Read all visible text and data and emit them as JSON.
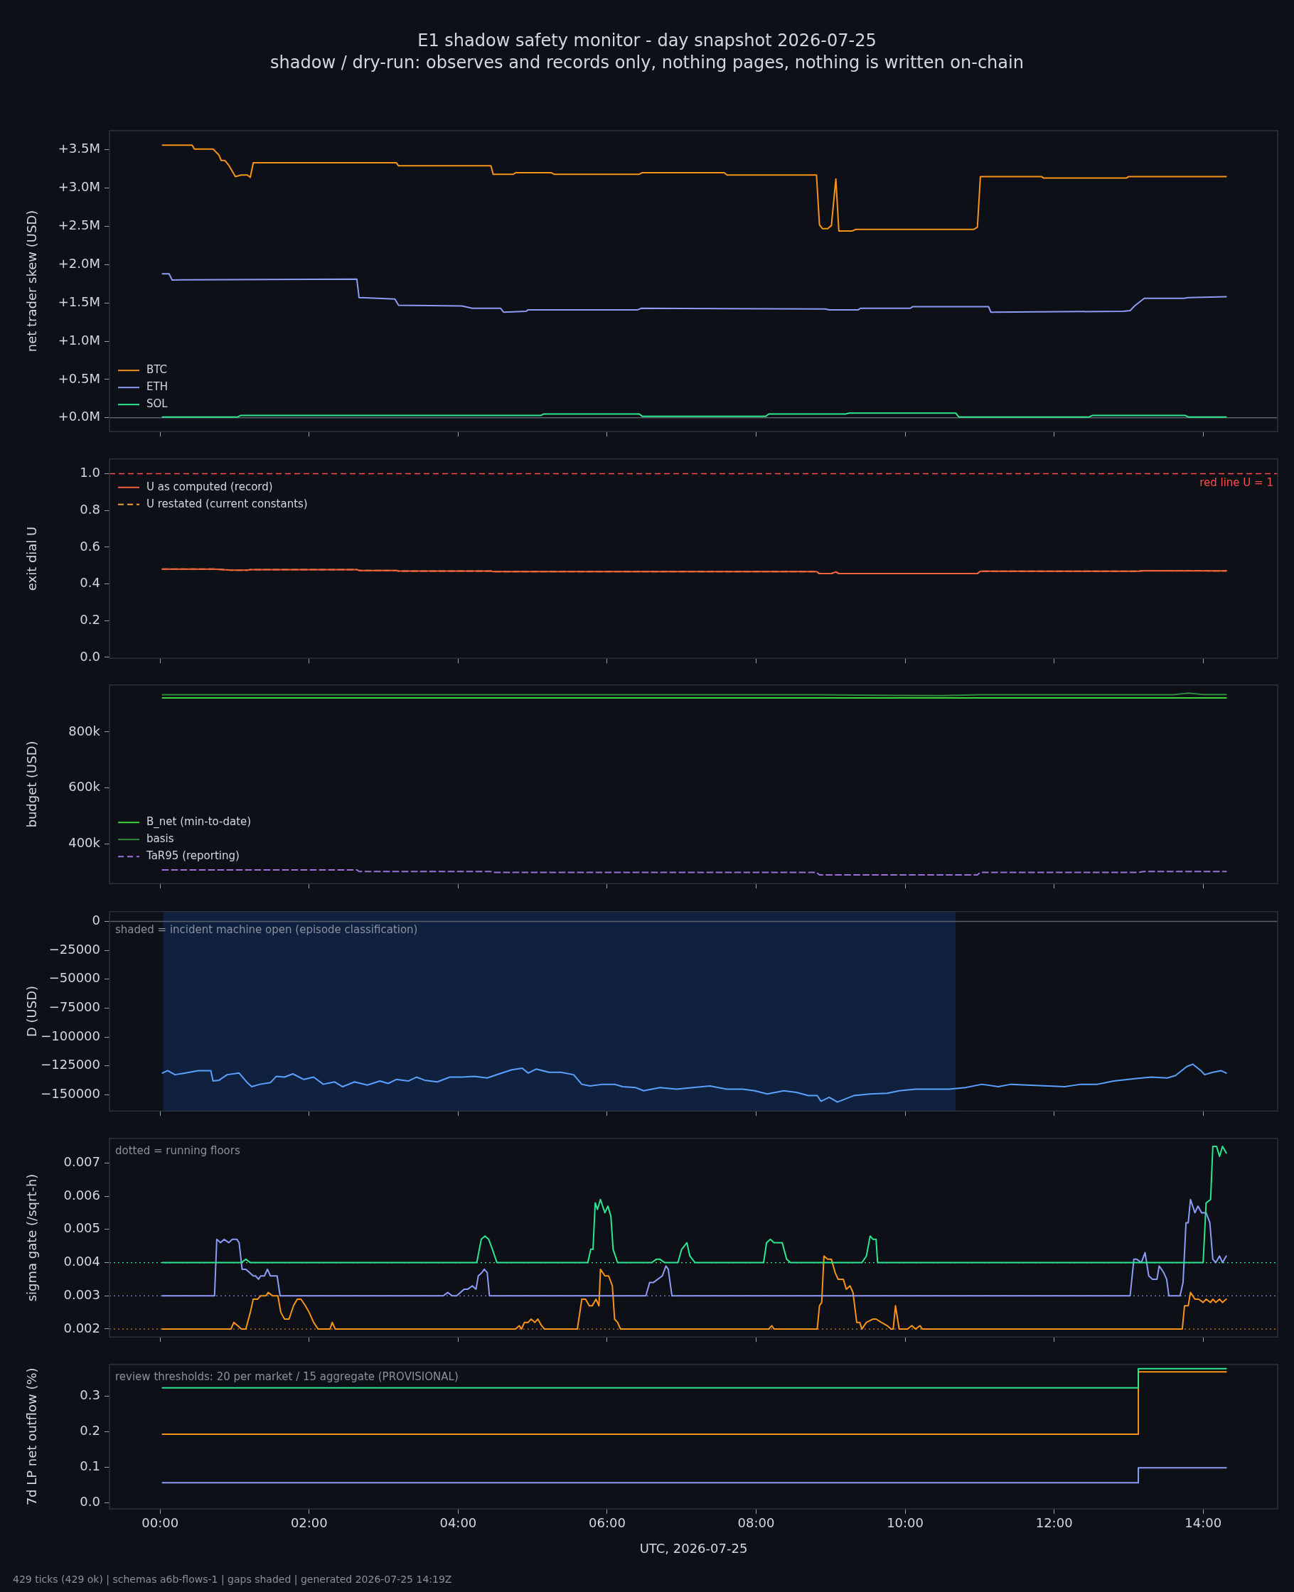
{
  "chart_data": [
    {
      "type": "line",
      "title": "E1 shadow safety monitor - day snapshot 2026-07-25",
      "subtitle": "shadow / dry-run: observes and records only, nothing pages, nothing is written on-chain",
      "ylabel": "net trader skew (USD)",
      "legend": "bottom left",
      "tick_labels": "y",
      "xlim": [
        -0.68,
        15.0
      ],
      "xticks": [
        0,
        2,
        4,
        6,
        8,
        10,
        12,
        14
      ],
      "ylim": [
        -0.18,
        3.75
      ],
      "yticks": [
        {
          "value": 0,
          "label": "+0.0M"
        },
        {
          "value": 0.5,
          "label": "+0.5M"
        },
        {
          "value": 1,
          "label": "+1.0M"
        },
        {
          "value": 1.5,
          "label": "+1.5M"
        },
        {
          "value": 2,
          "label": "+2.0M"
        },
        {
          "value": 2.5,
          "label": "+2.5M"
        },
        {
          "value": 3,
          "label": "+3.0M"
        },
        {
          "value": 3.5,
          "label": "+3.5M"
        }
      ],
      "ref_lines": [
        {
          "axis": "y",
          "value": 0,
          "color": "#5a606b"
        }
      ],
      "series": [
        {
          "name": "BTC",
          "color": "#f7931a",
          "x": [
            0.03,
            0.43,
            0.46,
            0.71,
            0.79,
            0.82,
            0.87,
            0.92,
            1.01,
            1.09,
            1.17,
            1.21,
            1.25,
            3.17,
            3.2,
            4.44,
            4.47,
            4.74,
            4.77,
            5.25,
            5.29,
            6.43,
            6.47,
            7.57,
            7.61,
            8.81,
            8.85,
            8.89,
            8.96,
            9.01,
            9.07,
            9.11,
            9.29,
            9.34,
            10.92,
            10.97,
            11.01,
            11.83,
            11.86,
            12.97,
            13.0,
            14.31
          ],
          "values": [
            3.56,
            3.56,
            3.51,
            3.51,
            3.43,
            3.36,
            3.36,
            3.3,
            3.15,
            3.17,
            3.17,
            3.14,
            3.33,
            3.33,
            3.29,
            3.29,
            3.18,
            3.18,
            3.2,
            3.2,
            3.18,
            3.18,
            3.2,
            3.2,
            3.17,
            3.17,
            2.52,
            2.47,
            2.47,
            2.51,
            3.12,
            2.44,
            2.44,
            2.46,
            2.46,
            2.49,
            3.15,
            3.15,
            3.13,
            3.13,
            3.15,
            3.15
          ]
        },
        {
          "name": "ETH",
          "color": "#8c9cf5",
          "x": [
            0.03,
            0.12,
            0.16,
            2.64,
            2.67,
            3.15,
            3.2,
            4.05,
            4.19,
            4.57,
            4.61,
            4.91,
            4.94,
            6.41,
            6.46,
            8.93,
            8.98,
            9.37,
            9.4,
            10.07,
            10.1,
            11.12,
            11.15,
            12.93,
            13.02,
            13.08,
            13.13,
            13.21,
            13.74,
            13.8,
            14.31
          ],
          "values": [
            1.88,
            1.88,
            1.8,
            1.81,
            1.57,
            1.55,
            1.47,
            1.46,
            1.43,
            1.43,
            1.38,
            1.39,
            1.41,
            1.41,
            1.43,
            1.42,
            1.41,
            1.41,
            1.43,
            1.43,
            1.45,
            1.45,
            1.38,
            1.39,
            1.4,
            1.46,
            1.5,
            1.56,
            1.56,
            1.57,
            1.58
          ]
        },
        {
          "name": "SOL",
          "color": "#2ee68f",
          "x": [
            0.03,
            1.04,
            1.08,
            5.11,
            5.15,
            6.43,
            6.47,
            8.13,
            8.17,
            9.2,
            9.25,
            10.68,
            10.72,
            12.47,
            12.51,
            13.76,
            13.8,
            14.31
          ],
          "values": [
            0.01,
            0.01,
            0.03,
            0.03,
            0.05,
            0.05,
            0.02,
            0.02,
            0.05,
            0.05,
            0.06,
            0.06,
            0.01,
            0.01,
            0.03,
            0.03,
            0.01,
            0.01
          ]
        }
      ]
    },
    {
      "type": "line",
      "ylabel": "exit dial U",
      "legend": "top left",
      "tick_labels": "y",
      "xlim": [
        -0.68,
        15.0
      ],
      "xticks": [
        0,
        2,
        4,
        6,
        8,
        10,
        12,
        14
      ],
      "ylim": [
        -0.005,
        1.08
      ],
      "yticks": [
        {
          "value": 0,
          "label": "0.0"
        },
        {
          "value": 0.2,
          "label": "0.2"
        },
        {
          "value": 0.4,
          "label": "0.4"
        },
        {
          "value": 0.6,
          "label": "0.6"
        },
        {
          "value": 0.8,
          "label": "0.8"
        },
        {
          "value": 1,
          "label": "1.0"
        }
      ],
      "ref_lines": [
        {
          "axis": "y",
          "value": 1,
          "label": "red line U = 1",
          "color": "#ff4d4d",
          "line_style": "dashed"
        }
      ],
      "series": [
        {
          "name": "U as computed (record)",
          "color": "#f0603c",
          "x": [
            0.03,
            0.73,
            0.95,
            1.17,
            1.21,
            2.64,
            2.67,
            3.17,
            3.2,
            4.44,
            4.47,
            8.81,
            8.85,
            9.01,
            9.07,
            9.11,
            10.97,
            11.01,
            13.13,
            13.2,
            14.31
          ],
          "values": [
            0.48,
            0.48,
            0.475,
            0.475,
            0.478,
            0.478,
            0.473,
            0.473,
            0.47,
            0.47,
            0.467,
            0.467,
            0.456,
            0.456,
            0.465,
            0.456,
            0.456,
            0.469,
            0.469,
            0.472,
            0.471
          ]
        },
        {
          "name": "U restated (current constants)",
          "color": "#f0a030",
          "line_style": "dashed",
          "x": [
            0.03,
            0.73,
            0.95,
            1.17,
            1.21,
            2.64,
            2.67,
            3.17,
            3.2,
            4.44,
            4.47,
            8.81,
            8.85,
            9.01,
            9.07,
            9.11,
            10.97,
            11.01,
            13.13,
            13.2,
            14.31
          ],
          "values": [
            0.48,
            0.48,
            0.475,
            0.475,
            0.478,
            0.478,
            0.473,
            0.473,
            0.47,
            0.47,
            0.467,
            0.467,
            0.456,
            0.456,
            0.465,
            0.456,
            0.456,
            0.469,
            0.469,
            0.472,
            0.471
          ]
        }
      ]
    },
    {
      "type": "line",
      "ylabel": "budget (USD)",
      "legend": "bottom left",
      "tick_labels": "y",
      "xlim": [
        -0.68,
        15.0
      ],
      "xticks": [
        0,
        2,
        4,
        6,
        8,
        10,
        12,
        14
      ],
      "ylim": [
        258000,
        968000
      ],
      "yticks": [
        {
          "value": 400000,
          "label": "400k"
        },
        {
          "value": 600000,
          "label": "600k"
        },
        {
          "value": 800000,
          "label": "800k"
        }
      ],
      "series": [
        {
          "name": "B_net (min-to-date)",
          "color": "#3cd43c",
          "x": [
            0.03,
            14.31
          ],
          "values": [
            922000,
            922000
          ]
        },
        {
          "name": "basis",
          "color": "#2e8b3e",
          "x": [
            0.03,
            8.8,
            10.5,
            11.0,
            13.6,
            13.8,
            14.0,
            14.31
          ],
          "values": [
            933000,
            933000,
            930000,
            933000,
            933000,
            939000,
            934000,
            934000
          ]
        },
        {
          "name": "TaR95 (reporting)",
          "color": "#9b6fd6",
          "line_style": "dashed",
          "x": [
            0.03,
            2.64,
            2.67,
            4.44,
            4.47,
            8.81,
            8.85,
            10.97,
            11.01,
            13.13,
            13.2,
            14.31
          ],
          "values": [
            307000,
            307000,
            301000,
            301000,
            298000,
            298000,
            289000,
            289000,
            298000,
            298000,
            301000,
            301000
          ]
        }
      ]
    },
    {
      "type": "line",
      "ylabel": "D (USD)",
      "tick_labels": "y",
      "xlim": [
        -0.68,
        15.0
      ],
      "xticks": [
        0,
        2,
        4,
        6,
        8,
        10,
        12,
        14
      ],
      "ylim": [
        -164000,
        8400
      ],
      "yticks": [
        {
          "value": -150000,
          "label": "−150000"
        },
        {
          "value": -125000,
          "label": "−125000"
        },
        {
          "value": -100000,
          "label": "−100000"
        },
        {
          "value": -75000,
          "label": "−75000"
        },
        {
          "value": -50000,
          "label": "−50000"
        },
        {
          "value": -25000,
          "label": "−25000"
        },
        {
          "value": 0,
          "label": "0"
        }
      ],
      "bands": [
        {
          "axis": "x",
          "from": 0.04,
          "to": 10.68,
          "label": "shaded = incident machine open (episode classification)",
          "color": "#10213f"
        }
      ],
      "ref_lines": [
        {
          "axis": "y",
          "value": 0,
          "color": "#5a606b"
        }
      ],
      "series": [
        {
          "color": "#5aa0ff",
          "x": [
            0.03,
            0.1,
            0.2,
            0.34,
            0.51,
            0.68,
            0.71,
            0.79,
            0.9,
            1.06,
            1.17,
            1.23,
            1.34,
            1.48,
            1.56,
            1.67,
            1.78,
            1.93,
            2.06,
            2.19,
            2.34,
            2.45,
            2.61,
            2.78,
            2.95,
            3.06,
            3.17,
            3.33,
            3.44,
            3.55,
            3.72,
            3.89,
            4.05,
            4.22,
            4.39,
            4.55,
            4.72,
            4.86,
            4.94,
            5.05,
            5.22,
            5.38,
            5.55,
            5.66,
            5.77,
            5.94,
            6.1,
            6.21,
            6.38,
            6.49,
            6.71,
            6.93,
            7.15,
            7.38,
            7.6,
            7.82,
            7.98,
            8.15,
            8.37,
            8.54,
            8.7,
            8.82,
            8.87,
            8.98,
            9.09,
            9.2,
            9.31,
            9.53,
            9.76,
            9.92,
            10.14,
            10.37,
            10.59,
            10.81,
            11.03,
            11.25,
            11.42,
            11.64,
            11.92,
            12.14,
            12.36,
            12.58,
            12.8,
            13.08,
            13.3,
            13.52,
            13.63,
            13.78,
            13.86,
            13.97,
            14.02,
            14.13,
            14.24,
            14.31
          ],
          "values": [
            -131200,
            -129100,
            -132600,
            -131200,
            -129100,
            -129100,
            -138100,
            -137400,
            -132600,
            -131200,
            -139500,
            -143000,
            -140900,
            -139500,
            -134000,
            -134700,
            -131900,
            -136700,
            -134700,
            -140900,
            -138800,
            -143000,
            -138800,
            -141600,
            -138100,
            -140200,
            -136700,
            -138100,
            -134700,
            -137400,
            -138800,
            -134700,
            -134700,
            -134000,
            -135400,
            -131900,
            -128400,
            -127000,
            -131200,
            -127700,
            -130500,
            -130500,
            -132600,
            -140900,
            -142300,
            -140900,
            -140900,
            -143000,
            -143700,
            -146500,
            -143700,
            -145100,
            -143700,
            -142300,
            -145100,
            -145100,
            -146500,
            -149300,
            -146500,
            -147900,
            -150700,
            -150700,
            -155600,
            -152100,
            -156300,
            -153500,
            -150700,
            -149300,
            -148600,
            -146500,
            -145100,
            -145100,
            -145100,
            -143700,
            -140900,
            -143000,
            -140900,
            -141600,
            -142300,
            -143000,
            -140900,
            -140900,
            -138100,
            -136100,
            -134700,
            -135400,
            -133300,
            -125600,
            -123500,
            -129100,
            -132600,
            -130500,
            -129100,
            -131200
          ]
        }
      ]
    },
    {
      "type": "line",
      "ylabel": "sigma gate (/sqrt-h)",
      "tick_labels": "y",
      "annotations": [
        "dotted = running floors"
      ],
      "xlim": [
        -0.68,
        15.0
      ],
      "xticks": [
        0,
        2,
        4,
        6,
        8,
        10,
        12,
        14
      ],
      "ylim": [
        0.00176,
        0.00774
      ],
      "yticks": [
        0.002,
        0.003,
        0.004,
        0.005,
        0.006,
        0.007
      ],
      "ref_lines": [
        {
          "axis": "y",
          "value": 0.004,
          "color": "#2ee68f",
          "line_style": "dotted"
        },
        {
          "axis": "y",
          "value": 0.003,
          "color": "#8c9cf5",
          "line_style": "dotted"
        },
        {
          "axis": "y",
          "value": 0.002,
          "color": "#f7931a",
          "line_style": "dotted"
        }
      ],
      "series": [
        {
          "color": "#2ee68f",
          "x": [
            0.03,
            1.09,
            1.15,
            1.21,
            4.25,
            4.31,
            4.36,
            4.41,
            4.46,
            4.52,
            5.74,
            5.78,
            5.81,
            5.84,
            5.87,
            5.91,
            5.97,
            6.01,
            6.05,
            6.08,
            6.14,
            6.6,
            6.66,
            6.71,
            6.77,
            6.95,
            7.0,
            7.07,
            7.11,
            7.18,
            8.1,
            8.14,
            8.19,
            8.24,
            8.35,
            8.41,
            8.46,
            9.42,
            9.48,
            9.53,
            9.57,
            9.61,
            9.63,
            14.0,
            14.04,
            14.1,
            14.13,
            14.18,
            14.22,
            14.26,
            14.31
          ],
          "values": [
            0.004,
            0.004,
            0.0041,
            0.004,
            0.004,
            0.0047,
            0.0048,
            0.0047,
            0.0044,
            0.004,
            0.004,
            0.0044,
            0.0044,
            0.0058,
            0.0056,
            0.0059,
            0.0055,
            0.0057,
            0.0054,
            0.0044,
            0.004,
            0.004,
            0.0041,
            0.0041,
            0.004,
            0.004,
            0.0044,
            0.0046,
            0.0042,
            0.004,
            0.004,
            0.0046,
            0.0047,
            0.0046,
            0.0046,
            0.0041,
            0.004,
            0.004,
            0.0042,
            0.0048,
            0.0047,
            0.0047,
            0.004,
            0.004,
            0.0058,
            0.0059,
            0.0075,
            0.0075,
            0.0072,
            0.0075,
            0.0073
          ]
        },
        {
          "color": "#8c9cf5",
          "x": [
            0.03,
            0.73,
            0.76,
            0.81,
            0.86,
            0.92,
            0.97,
            1.03,
            1.06,
            1.1,
            1.15,
            1.2,
            1.25,
            1.28,
            1.32,
            1.35,
            1.4,
            1.44,
            1.48,
            1.57,
            1.61,
            3.8,
            3.86,
            3.92,
            3.98,
            4.08,
            4.13,
            4.19,
            4.24,
            4.27,
            4.32,
            4.35,
            4.39,
            4.42,
            6.52,
            6.57,
            6.62,
            6.68,
            6.74,
            6.79,
            6.82,
            6.87,
            13.02,
            13.07,
            13.11,
            13.17,
            13.22,
            13.27,
            13.32,
            13.38,
            13.41,
            13.47,
            13.51,
            13.54,
            13.69,
            13.73,
            13.77,
            13.8,
            13.83,
            13.89,
            13.93,
            13.98,
            14.04,
            14.09,
            14.13,
            14.17,
            14.22,
            14.26,
            14.31
          ],
          "values": [
            0.003,
            0.003,
            0.0047,
            0.0046,
            0.0047,
            0.0046,
            0.0047,
            0.0047,
            0.0046,
            0.0038,
            0.0038,
            0.0037,
            0.0036,
            0.0036,
            0.0035,
            0.0036,
            0.0036,
            0.0038,
            0.0036,
            0.0036,
            0.003,
            0.003,
            0.0031,
            0.003,
            0.003,
            0.0032,
            0.0032,
            0.0033,
            0.0032,
            0.0036,
            0.0037,
            0.0038,
            0.0037,
            0.003,
            0.003,
            0.0034,
            0.0034,
            0.0035,
            0.0036,
            0.0039,
            0.0038,
            0.003,
            0.003,
            0.0041,
            0.0041,
            0.004,
            0.0043,
            0.0036,
            0.0035,
            0.0035,
            0.0039,
            0.0037,
            0.0035,
            0.003,
            0.003,
            0.0034,
            0.0052,
            0.0052,
            0.0059,
            0.0055,
            0.0057,
            0.0055,
            0.0055,
            0.0052,
            0.0041,
            0.004,
            0.0042,
            0.004,
            0.0042
          ]
        },
        {
          "color": "#f7931a",
          "x": [
            0.03,
            0.95,
            0.99,
            1.04,
            1.09,
            1.15,
            1.21,
            1.25,
            1.31,
            1.35,
            1.42,
            1.45,
            1.51,
            1.58,
            1.62,
            1.67,
            1.73,
            1.79,
            1.84,
            1.89,
            1.95,
            2.0,
            2.06,
            2.12,
            2.28,
            2.31,
            2.35,
            4.77,
            4.82,
            4.85,
            4.89,
            4.94,
            4.98,
            5.03,
            5.07,
            5.12,
            5.16,
            5.6,
            5.66,
            5.71,
            5.76,
            5.8,
            5.85,
            5.89,
            5.91,
            5.97,
            6.02,
            6.07,
            6.1,
            6.14,
            6.18,
            8.17,
            8.21,
            8.24,
            8.82,
            8.85,
            8.88,
            8.91,
            8.96,
            9.01,
            9.06,
            9.1,
            9.17,
            9.21,
            9.26,
            9.3,
            9.35,
            9.39,
            9.42,
            9.48,
            9.57,
            9.61,
            9.68,
            9.76,
            9.81,
            9.84,
            9.87,
            9.92,
            10.03,
            10.09,
            10.14,
            10.2,
            10.23,
            13.72,
            13.75,
            13.8,
            13.83,
            13.89,
            13.94,
            14.0,
            14.04,
            14.1,
            14.13,
            14.17,
            14.22,
            14.26,
            14.31
          ],
          "values": [
            0.002,
            0.002,
            0.0022,
            0.0021,
            0.002,
            0.002,
            0.0025,
            0.0029,
            0.0029,
            0.003,
            0.003,
            0.0031,
            0.003,
            0.003,
            0.0025,
            0.0023,
            0.0023,
            0.0027,
            0.0029,
            0.0029,
            0.0027,
            0.0025,
            0.0022,
            0.002,
            0.002,
            0.0022,
            0.002,
            0.002,
            0.0021,
            0.002,
            0.0022,
            0.0022,
            0.0023,
            0.0022,
            0.0023,
            0.0021,
            0.002,
            0.002,
            0.0029,
            0.0029,
            0.0027,
            0.0027,
            0.0029,
            0.0027,
            0.0038,
            0.0036,
            0.0036,
            0.0033,
            0.0023,
            0.0022,
            0.002,
            0.002,
            0.0021,
            0.002,
            0.002,
            0.0027,
            0.0028,
            0.0042,
            0.0041,
            0.0041,
            0.0037,
            0.0035,
            0.0035,
            0.0032,
            0.0033,
            0.0031,
            0.0022,
            0.0022,
            0.002,
            0.0022,
            0.0023,
            0.0023,
            0.0022,
            0.0021,
            0.002,
            0.002,
            0.0027,
            0.002,
            0.002,
            0.0021,
            0.002,
            0.0021,
            0.002,
            0.002,
            0.0027,
            0.0027,
            0.0031,
            0.0029,
            0.0029,
            0.0028,
            0.0029,
            0.0028,
            0.0029,
            0.0028,
            0.0029,
            0.0028,
            0.0029
          ]
        }
      ]
    },
    {
      "type": "step",
      "ylabel": "7d LP net outflow (%)",
      "xlabel": "UTC, 2026-07-25",
      "annotations": [
        "review thresholds: 20 per market / 15 aggregate (PROVISIONAL)",
        "429 ticks (429 ok) | schemas a6b-flows-1 | gaps shaded | generated 2026-07-25 14:19Z"
      ],
      "xlim": [
        -0.68,
        15.0
      ],
      "xticks": [
        {
          "value": 0,
          "label": "00:00"
        },
        {
          "value": 2,
          "label": "02:00"
        },
        {
          "value": 4,
          "label": "04:00"
        },
        {
          "value": 6,
          "label": "06:00"
        },
        {
          "value": 8,
          "label": "08:00"
        },
        {
          "value": 10,
          "label": "10:00"
        },
        {
          "value": 12,
          "label": "12:00"
        },
        {
          "value": 14,
          "label": "14:00"
        }
      ],
      "ylim": [
        -0.018,
        0.39
      ],
      "yticks": [
        {
          "value": 0,
          "label": "0.0"
        },
        {
          "value": 0.1,
          "label": "0.1"
        },
        {
          "value": 0.2,
          "label": "0.2"
        },
        {
          "value": 0.3,
          "label": "0.3"
        }
      ],
      "series": [
        {
          "color": "#2ee68f",
          "x": [
            0.03,
            13.13,
            14.31
          ],
          "values": [
            0.324,
            0.378,
            0.378
          ]
        },
        {
          "color": "#f7931a",
          "x": [
            0.03,
            13.13,
            14.31
          ],
          "values": [
            0.193,
            0.369,
            0.369
          ]
        },
        {
          "color": "#8c9cf5",
          "x": [
            0.03,
            13.13,
            14.31
          ],
          "values": [
            0.056,
            0.098,
            0.098
          ]
        }
      ]
    }
  ]
}
